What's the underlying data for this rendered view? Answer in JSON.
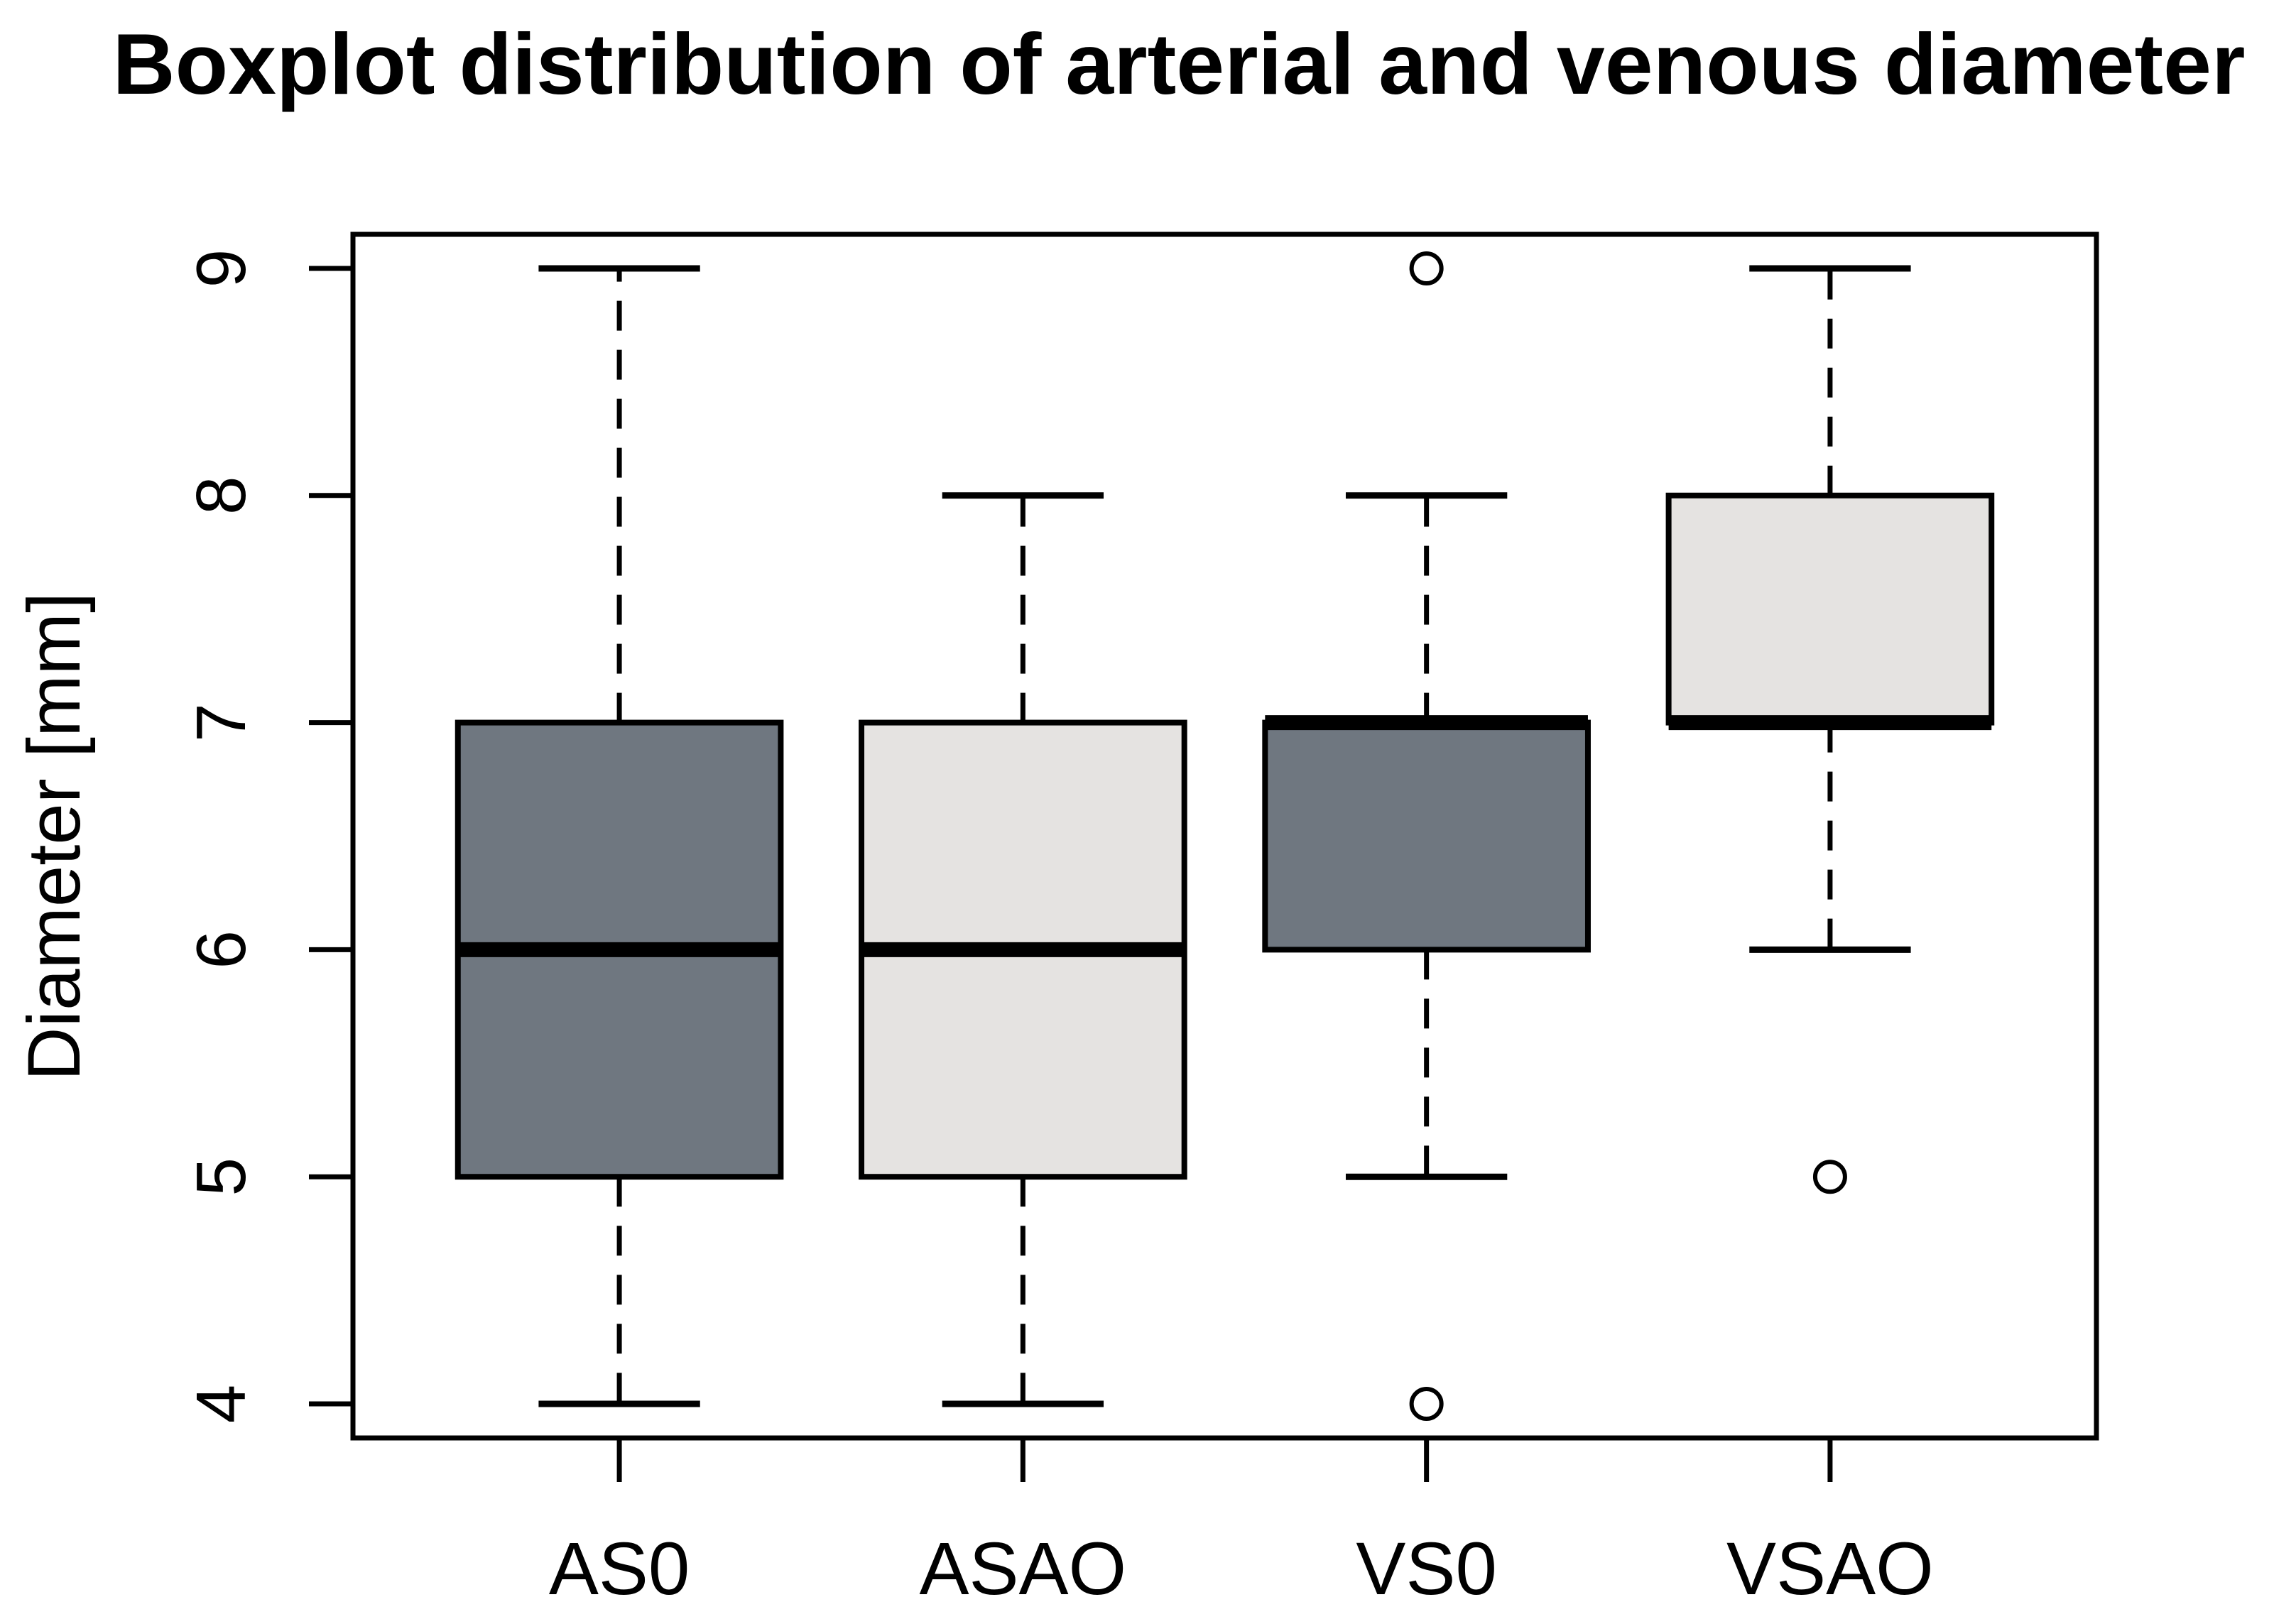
{
  "chart_data": {
    "type": "boxplot",
    "title": "Boxplot distribution of arterial and venous diameter",
    "xlabel": "",
    "ylabel": "Diameter [mm]",
    "categories": [
      "AS0",
      "ASAO",
      "VS0",
      "VSAO"
    ],
    "y_ticks": [
      4,
      5,
      6,
      7,
      8,
      9
    ],
    "ylim": [
      3.85,
      9.15
    ],
    "xlim": [
      0.34,
      4.66
    ],
    "grid": false,
    "legend": "none",
    "series": [
      {
        "name": "AS0",
        "shade": "dark_gray",
        "fill_hex": "#6F7780",
        "whisker_low": 4,
        "q1": 5,
        "median": 6,
        "q3": 7,
        "whisker_high": 9,
        "outliers": []
      },
      {
        "name": "ASAO",
        "shade": "light_gray",
        "fill_hex": "#E5E3E1",
        "whisker_low": 4,
        "q1": 5,
        "median": 6,
        "q3": 7,
        "whisker_high": 8,
        "outliers": []
      },
      {
        "name": "VS0",
        "shade": "dark_gray",
        "fill_hex": "#6F7780",
        "whisker_low": 5,
        "q1": 6,
        "median": 7,
        "q3": 7,
        "whisker_high": 8,
        "outliers": [
          9,
          4
        ]
      },
      {
        "name": "VSAO",
        "shade": "light_gray",
        "fill_hex": "#E5E3E1",
        "whisker_low": 6,
        "q1": 7,
        "median": 7,
        "q3": 8,
        "whisker_high": 9,
        "outliers": [
          5
        ]
      }
    ],
    "colors": {
      "box_dark": "#6F7780",
      "box_light": "#E5E3E1",
      "line": "#000000",
      "background": "#FFFFFF"
    }
  }
}
